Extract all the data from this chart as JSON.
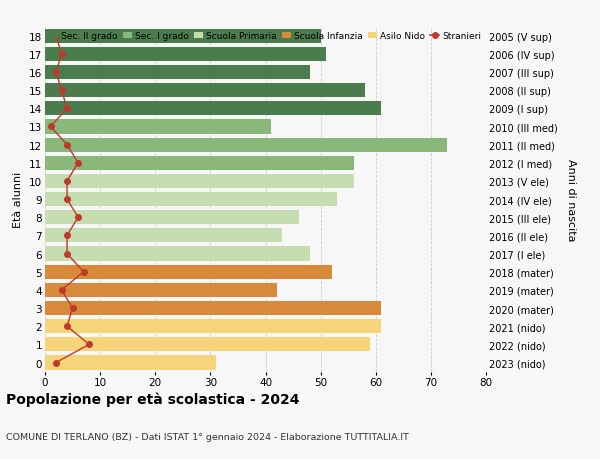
{
  "ages": [
    18,
    17,
    16,
    15,
    14,
    13,
    12,
    11,
    10,
    9,
    8,
    7,
    6,
    5,
    4,
    3,
    2,
    1,
    0
  ],
  "years": [
    "2005 (V sup)",
    "2006 (IV sup)",
    "2007 (III sup)",
    "2008 (II sup)",
    "2009 (I sup)",
    "2010 (III med)",
    "2011 (II med)",
    "2012 (I med)",
    "2013 (V ele)",
    "2014 (IV ele)",
    "2015 (III ele)",
    "2016 (II ele)",
    "2017 (I ele)",
    "2018 (mater)",
    "2019 (mater)",
    "2020 (mater)",
    "2021 (nido)",
    "2022 (nido)",
    "2023 (nido)"
  ],
  "bar_values": [
    50,
    51,
    48,
    58,
    61,
    41,
    73,
    56,
    56,
    53,
    46,
    43,
    48,
    52,
    42,
    61,
    61,
    59,
    31
  ],
  "bar_colors": [
    "#4a7c4e",
    "#4a7c4e",
    "#4a7c4e",
    "#4a7c4e",
    "#4a7c4e",
    "#8ab87a",
    "#8ab87a",
    "#8ab87a",
    "#c5ddb0",
    "#c5ddb0",
    "#c5ddb0",
    "#c5ddb0",
    "#c5ddb0",
    "#d9893a",
    "#d9893a",
    "#d9893a",
    "#f5d47a",
    "#f5d47a",
    "#f5d47a"
  ],
  "stranieri": [
    2,
    3,
    2,
    3,
    4,
    1,
    4,
    6,
    4,
    4,
    6,
    4,
    4,
    7,
    3,
    5,
    4,
    8,
    2
  ],
  "title": "Popolazione per età scolastica - 2024",
  "subtitle": "COMUNE DI TERLANO (BZ) - Dati ISTAT 1° gennaio 2024 - Elaborazione TUTTITALIA.IT",
  "ylabel_left": "Età alunni",
  "ylabel_right": "Anni di nascita",
  "xlim": [
    0,
    80
  ],
  "xticks": [
    0,
    10,
    20,
    30,
    40,
    50,
    60,
    70,
    80
  ],
  "legend_labels": [
    "Sec. II grado",
    "Sec. I grado",
    "Scuola Primaria",
    "Scuola Infanzia",
    "Asilo Nido",
    "Stranieri"
  ],
  "legend_colors": [
    "#4a7c4e",
    "#8ab87a",
    "#c5ddb0",
    "#d9893a",
    "#f5d47a",
    "#c0392b"
  ],
  "stranieri_color": "#c0392b",
  "bg_color": "#f7f7f7",
  "grid_color": "#cccccc"
}
